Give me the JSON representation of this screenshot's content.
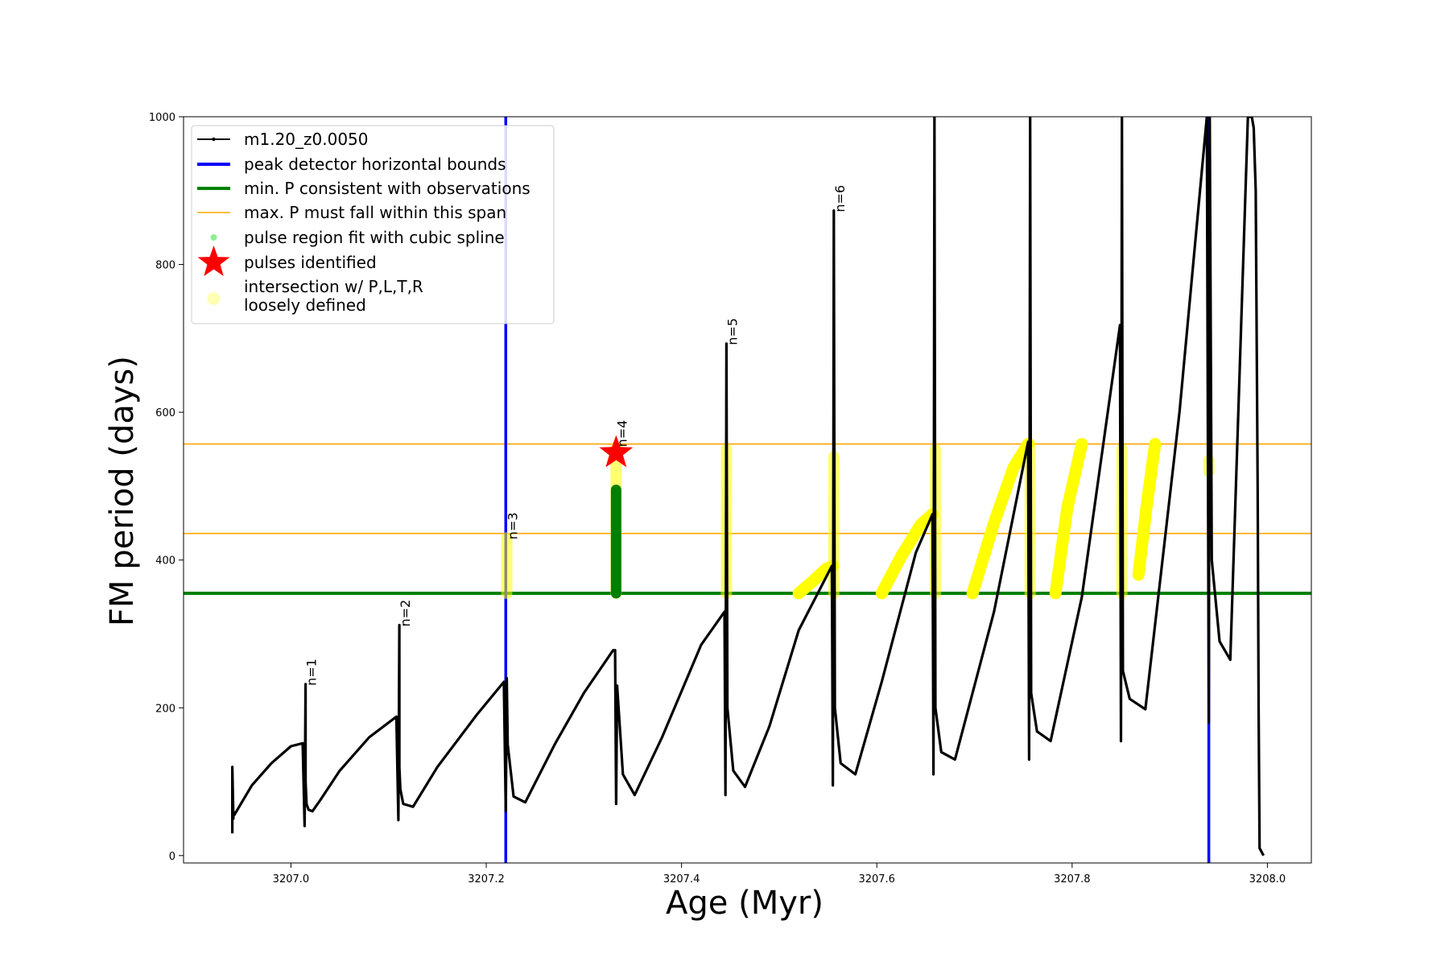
{
  "chart_data": {
    "type": "line",
    "xlabel": "Age (Myr)",
    "ylabel": "FM period (days)",
    "xlim": [
      3206.89,
      3208.045
    ],
    "ylim": [
      -10,
      1000
    ],
    "xticks": [
      3207.0,
      3207.2,
      3207.4,
      3207.6,
      3207.8,
      3208.0
    ],
    "xtick_labels": [
      "3207.0",
      "3207.2",
      "3207.4",
      "3207.6",
      "3207.8",
      "3208.0"
    ],
    "yticks": [
      0,
      200,
      400,
      600,
      800,
      1000
    ],
    "ytick_labels": [
      "0",
      "200",
      "400",
      "600",
      "800",
      "1000"
    ],
    "grid": false,
    "legend_position": "top-left",
    "colors": {
      "track": "#000000",
      "bounds": "#0000ff",
      "min_p": "#008000",
      "max_p": "#ffa500",
      "spline": "#90ee90",
      "spline_dark": "#008000",
      "star": "#ff0000",
      "intersection": "#ffff00",
      "intersection_faint": "#ffffb3"
    },
    "legend": [
      {
        "label": "m1.20_z0.0050",
        "style": "line-marker",
        "color": "#000000"
      },
      {
        "label": "peak detector horizontal bounds",
        "style": "thick-line",
        "color": "#0000ff"
      },
      {
        "label": "min. P consistent with observations",
        "style": "thick-line",
        "color": "#008000"
      },
      {
        "label": "max. P must fall within this span",
        "style": "thin-line",
        "color": "#ffa500"
      },
      {
        "label": "pulse region fit with cubic spline",
        "style": "dot",
        "color": "#90ee90"
      },
      {
        "label": "pulses identified",
        "style": "star",
        "color": "#ff0000"
      },
      {
        "label": "intersection w/ P,L,T,R",
        "label2": "loosely defined",
        "style": "big-dot",
        "color": "#ffffb3"
      }
    ],
    "vertical_lines": [
      3207.22,
      3207.94
    ],
    "min_p_line": 355,
    "max_p_lines": [
      436,
      557
    ],
    "pulse_labels": [
      {
        "text": "n=1",
        "x": 3207.015,
        "y": 232
      },
      {
        "text": "n=2",
        "x": 3207.111,
        "y": 312
      },
      {
        "text": "n=3",
        "x": 3207.221,
        "y": 430
      },
      {
        "text": "n=4",
        "x": 3207.333,
        "y": 555
      },
      {
        "text": "n=5",
        "x": 3207.446,
        "y": 693
      },
      {
        "text": "n=6",
        "x": 3207.556,
        "y": 873
      }
    ],
    "star": {
      "x": 3207.333,
      "y": 545
    },
    "series": [
      {
        "name": "m1.20_z0.0050",
        "x": [
          3206.94,
          3206.94,
          3206.941,
          3206.941,
          3206.942,
          3206.96,
          3206.98,
          3207.0,
          3207.012,
          3207.014,
          3207.015,
          3207.015,
          3207.016,
          3207.018,
          3207.022,
          3207.03,
          3207.05,
          3207.08,
          3207.108,
          3207.11,
          3207.111,
          3207.111,
          3207.112,
          3207.115,
          3207.125,
          3207.15,
          3207.19,
          3207.218,
          3207.22,
          3207.221,
          3207.222,
          3207.228,
          3207.24,
          3207.27,
          3207.3,
          3207.33,
          3207.332,
          3207.333,
          3207.334,
          3207.34,
          3207.352,
          3207.38,
          3207.42,
          3207.444,
          3207.445,
          3207.446,
          3207.447,
          3207.453,
          3207.465,
          3207.49,
          3207.52,
          3207.554,
          3207.555,
          3207.556,
          3207.557,
          3207.563,
          3207.578,
          3207.605,
          3207.64,
          3207.657,
          3207.658,
          3207.659,
          3207.66,
          3207.666,
          3207.68,
          3207.72,
          3207.755,
          3207.756,
          3207.757,
          3207.758,
          3207.764,
          3207.778,
          3207.81,
          3207.849,
          3207.85,
          3207.851,
          3207.852,
          3207.859,
          3207.875,
          3207.91,
          3207.938,
          3207.94,
          3207.941,
          3207.943,
          3207.951,
          3207.962,
          3207.98,
          3207.984,
          3207.986,
          3207.988,
          3207.99,
          3207.991,
          3207.992,
          3207.996
        ],
        "y": [
          30,
          120,
          50,
          60,
          55,
          95,
          125,
          148,
          152,
          40,
          232,
          100,
          70,
          62,
          60,
          75,
          115,
          160,
          188,
          48,
          312,
          120,
          90,
          70,
          66,
          120,
          190,
          235,
          60,
          240,
          150,
          80,
          72,
          150,
          220,
          278,
          278,
          70,
          230,
          110,
          82,
          160,
          285,
          330,
          82,
          693,
          200,
          115,
          93,
          175,
          305,
          392,
          95,
          873,
          200,
          125,
          110,
          235,
          410,
          462,
          110,
          1000,
          200,
          140,
          130,
          330,
          560,
          130,
          1000,
          220,
          168,
          155,
          350,
          718,
          155,
          1000,
          250,
          212,
          198,
          600,
          1000,
          180,
          1000,
          400,
          290,
          265,
          1000,
          1000,
          985,
          900,
          500,
          200,
          10,
          0
        ]
      }
    ],
    "spline_regions": [
      {
        "x": 3207.333,
        "y_min": 355,
        "y_max": 495
      }
    ],
    "intersection_regions": [
      {
        "kind": "column",
        "x": 3207.221,
        "y_min": 355,
        "y_max": 430
      },
      {
        "kind": "column",
        "x": 3207.333,
        "y_min": 355,
        "y_max": 552
      },
      {
        "kind": "column",
        "x": 3207.446,
        "y_min": 355,
        "y_max": 550
      },
      {
        "kind": "column",
        "x": 3207.556,
        "y_min": 355,
        "y_max": 540
      },
      {
        "kind": "column",
        "x": 3207.66,
        "y_min": 355,
        "y_max": 550
      },
      {
        "kind": "column",
        "x": 3207.757,
        "y_min": 355,
        "y_max": 557
      },
      {
        "kind": "column",
        "x": 3207.851,
        "y_min": 355,
        "y_max": 550
      },
      {
        "kind": "curve",
        "x": [
          3207.52,
          3207.535,
          3207.548,
          3207.555
        ],
        "y": [
          355,
          372,
          388,
          392
        ]
      },
      {
        "kind": "curve",
        "x": [
          3207.605,
          3207.625,
          3207.645,
          3207.657
        ],
        "y": [
          355,
          405,
          448,
          462
        ]
      },
      {
        "kind": "curve",
        "x": [
          3207.698,
          3207.72,
          3207.74,
          3207.755
        ],
        "y": [
          355,
          450,
          525,
          557
        ]
      },
      {
        "kind": "curve",
        "x": [
          3207.783,
          3207.795,
          3207.81
        ],
        "y": [
          355,
          470,
          557
        ]
      },
      {
        "kind": "curve",
        "x": [
          3207.868,
          3207.876,
          3207.885
        ],
        "y": [
          380,
          470,
          557
        ]
      },
      {
        "kind": "column",
        "x": 3207.94,
        "y_min": 520,
        "y_max": 535
      }
    ]
  }
}
